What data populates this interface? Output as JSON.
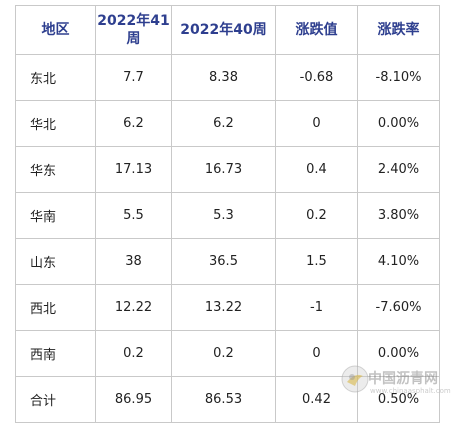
{
  "table": {
    "headers": [
      "地区",
      "2022年41周",
      "2022年40周",
      "涨跌值",
      "涨跌率"
    ],
    "rows": [
      {
        "region": "东北",
        "w41": "7.7",
        "w40": "8.38",
        "change": "-0.68",
        "rate": "-8.10%"
      },
      {
        "region": "华北",
        "w41": "6.2",
        "w40": "6.2",
        "change": "0",
        "rate": "0.00%"
      },
      {
        "region": "华东",
        "w41": "17.13",
        "w40": "16.73",
        "change": "0.4",
        "rate": "2.40%"
      },
      {
        "region": "华南",
        "w41": "5.5",
        "w40": "5.3",
        "change": "0.2",
        "rate": "3.80%"
      },
      {
        "region": "山东",
        "w41": "38",
        "w40": "36.5",
        "change": "1.5",
        "rate": "4.10%"
      },
      {
        "region": "西北",
        "w41": "12.22",
        "w40": "13.22",
        "change": "-1",
        "rate": "-7.60%"
      },
      {
        "region": "西南",
        "w41": "0.2",
        "w40": "0.2",
        "change": "0",
        "rate": "0.00%"
      },
      {
        "region": "合计",
        "w41": "86.95",
        "w40": "86.53",
        "change": "0.42",
        "rate": "0.50%"
      }
    ]
  },
  "watermark": {
    "text": "中国沥青网",
    "url": "www.chinaasphalt.com"
  },
  "colors": {
    "header_text": "#2e3f8f",
    "body_text": "#222222",
    "border": "#c9c9c9"
  }
}
